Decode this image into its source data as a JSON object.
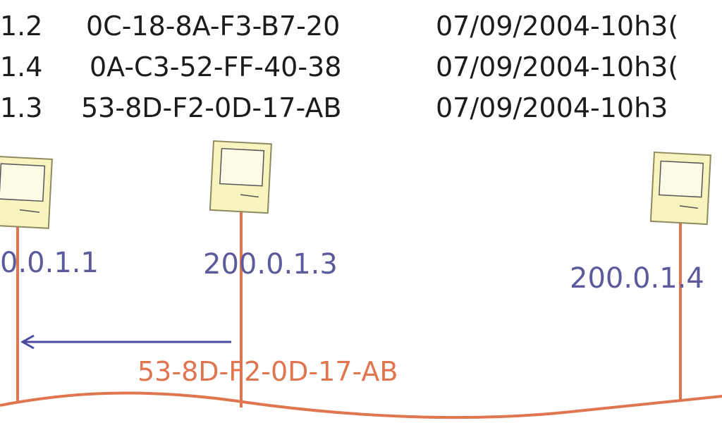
{
  "arp_table": [
    {
      "ip": "1.2",
      "mac": "0C-18-8A-F3-B7-20",
      "date": "07/09/2004-10h3("
    },
    {
      "ip": "1.4",
      "mac": "0A-C3-52-FF-40-38",
      "date": "07/09/2004-10h3("
    },
    {
      "ip": "1.3",
      "mac": "53-8D-F2-0D-17-AB",
      "date": "07/09/2004-10h3"
    }
  ],
  "hosts": [
    {
      "ip": "0.0.1.1",
      "icon": "computer-icon"
    },
    {
      "ip": "200.0.1.3",
      "icon": "computer-icon"
    },
    {
      "ip": "200.0.1.4",
      "icon": "computer-icon"
    }
  ],
  "packet": {
    "mac": "53-8D-F2-0D-17-AB",
    "direction": "left"
  },
  "colors": {
    "text": "#1c1c1c",
    "ip": "#5d5a9c",
    "cable": "#e0764f",
    "arrow": "#4a4aa0",
    "computer": "#f8f4c0"
  }
}
